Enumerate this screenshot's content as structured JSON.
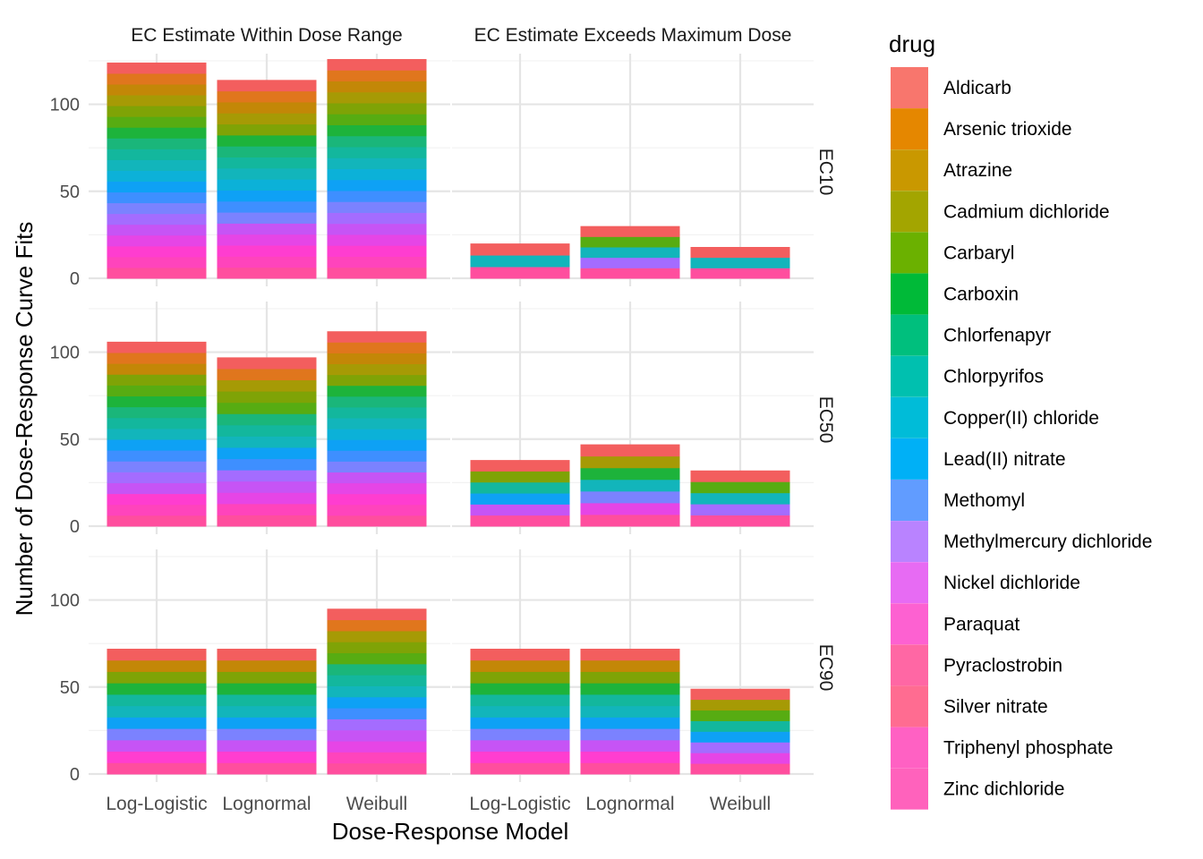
{
  "chart_data": {
    "type": "bar",
    "stacked": true,
    "faceted": true,
    "xlabel": "Dose-Response Model",
    "ylabel": "Number of Dose-Response Curve Fits",
    "col_facets": [
      "EC Estimate Within Dose Range",
      "EC Estimate Exceeds Maximum Dose"
    ],
    "row_facets": [
      "EC10",
      "EC50",
      "EC90"
    ],
    "categories": [
      "Log-Logistic",
      "Lognormal",
      "Weibull"
    ],
    "y_ticks": [
      0,
      50,
      100
    ],
    "ylim": [
      0,
      126
    ],
    "legend": {
      "title": "drug",
      "position": "right",
      "entries": [
        {
          "name": "Aldicarb",
          "color": "#F8766D"
        },
        {
          "name": "Arsenic trioxide",
          "color": "#E58700"
        },
        {
          "name": "Atrazine",
          "color": "#C99800"
        },
        {
          "name": "Cadmium dichloride",
          "color": "#A3A500"
        },
        {
          "name": "Carbaryl",
          "color": "#6BB100"
        },
        {
          "name": "Carboxin",
          "color": "#00BA38"
        },
        {
          "name": "Chlorfenapyr",
          "color": "#00BF7D"
        },
        {
          "name": "Chlorpyrifos",
          "color": "#00C0AF"
        },
        {
          "name": "Copper(II) chloride",
          "color": "#00BCD8"
        },
        {
          "name": "Lead(II) nitrate",
          "color": "#00B0F6"
        },
        {
          "name": "Methomyl",
          "color": "#619CFF"
        },
        {
          "name": "Methylmercury dichloride",
          "color": "#B983FF"
        },
        {
          "name": "Nickel dichloride",
          "color": "#E76BF3"
        },
        {
          "name": "Paraquat",
          "color": "#FD61D1"
        },
        {
          "name": "Pyraclostrobin",
          "color": "#FF67A4"
        },
        {
          "name": "Silver nitrate",
          "color": "#FF6C91"
        },
        {
          "name": "Triphenyl phosphate",
          "color": "#FF61C3"
        },
        {
          "name": "Zinc dichloride",
          "color": "#FF62BC"
        }
      ]
    },
    "bar_colors_bottom_to_top": [
      "#FF4E9E",
      "#FF44BC",
      "#FF3DD0",
      "#E645E6",
      "#C654F5",
      "#A46CFF",
      "#7B82FF",
      "#3E8FFF",
      "#0EA1F5",
      "#0CB1D8",
      "#12B5BB",
      "#13B79D",
      "#1AB67A",
      "#1DB33B",
      "#57AC12",
      "#7FA306",
      "#A69A05",
      "#C38707",
      "#E0761D",
      "#F35E5E"
    ],
    "panels": [
      {
        "row": "EC10",
        "col": "EC Estimate Within Dose Range",
        "totals": [
          124,
          114,
          126
        ]
      },
      {
        "row": "EC10",
        "col": "EC Estimate Exceeds Maximum Dose",
        "totals": [
          20,
          30,
          18
        ]
      },
      {
        "row": "EC50",
        "col": "EC Estimate Within Dose Range",
        "totals": [
          106,
          97,
          112
        ]
      },
      {
        "row": "EC50",
        "col": "EC Estimate Exceeds Maximum Dose",
        "totals": [
          38,
          47,
          32
        ]
      },
      {
        "row": "EC90",
        "col": "EC Estimate Within Dose Range",
        "totals": [
          72,
          72,
          95
        ]
      },
      {
        "row": "EC90",
        "col": "EC Estimate Exceeds Maximum Dose",
        "totals": [
          72,
          72,
          49
        ]
      }
    ]
  }
}
